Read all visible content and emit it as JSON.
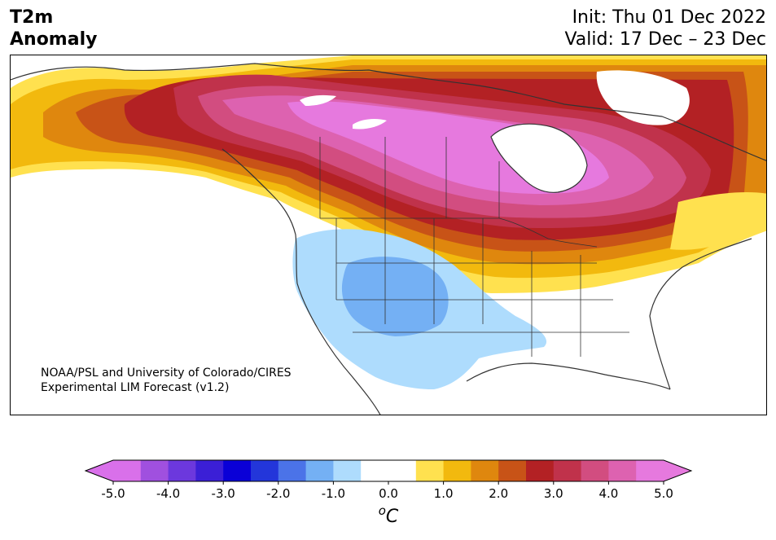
{
  "title": {
    "line1": "T2m",
    "line2": "Anomaly"
  },
  "dates": {
    "init": "Init: Thu 01 Dec 2022",
    "valid": "Valid: 17 Dec – 23 Dec"
  },
  "credit": {
    "line1": "NOAA/PSL and University of Colorado/CIRES",
    "line2": "Experimental LIM Forecast (v1.2)"
  },
  "colorbar": {
    "ticks": [
      "-5.0",
      "-4.0",
      "-3.0",
      "-2.0",
      "-1.0",
      "0.0",
      "1.0",
      "2.0",
      "3.0",
      "4.0",
      "5.0"
    ],
    "unit_base": "o",
    "unit_main": "C",
    "colors": [
      "#d970ea",
      "#a050df",
      "#6c38dd",
      "#3b1fd6",
      "#0a00d7",
      "#2336da",
      "#4b73e8",
      "#74b0f4",
      "#aedcfd",
      "#ffffff",
      "#ffffff",
      "#ffe14f",
      "#f2b90e",
      "#df870e",
      "#c85317",
      "#b32124",
      "#c0324b",
      "#d24d80",
      "#dd62b0",
      "#e679de"
    ],
    "under_color": "#d970ea",
    "over_color": "#e679de"
  },
  "map_colors": {
    "ocean": "#ffffff",
    "yellow": "#ffe14f",
    "gold": "#f2b90e",
    "orange": "#df870e",
    "burnt": "#c85317",
    "red": "#b32124",
    "crimson": "#c0324b",
    "rose": "#d24d80",
    "pink": "#dd62b0",
    "magenta": "#e679de",
    "lightblue": "#aedcfd",
    "midblue": "#74b0f4",
    "lines": "#333333"
  }
}
